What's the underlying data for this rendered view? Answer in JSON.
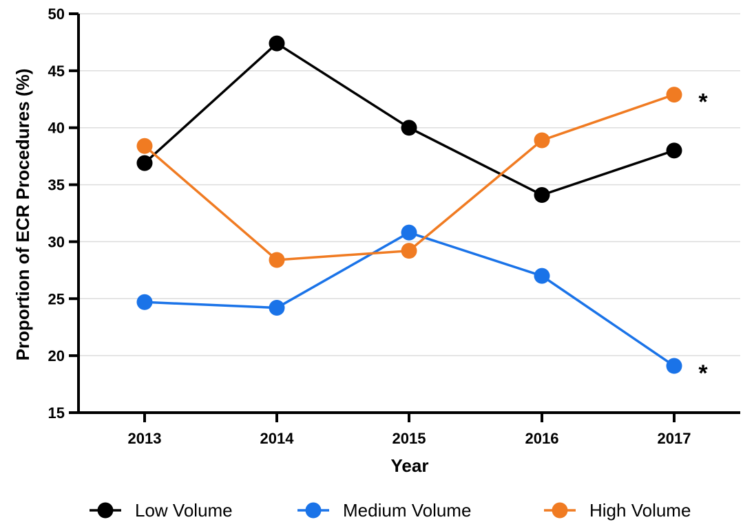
{
  "chart_data": {
    "type": "line",
    "title": "",
    "xlabel": "Year",
    "ylabel": "Proportion of ECR Procedures (%)",
    "categories": [
      "2013",
      "2014",
      "2015",
      "2016",
      "2017"
    ],
    "ylim": [
      15,
      50
    ],
    "yticks": [
      15,
      20,
      25,
      30,
      35,
      40,
      45,
      50
    ],
    "grid": "horizontal",
    "legend_position": "bottom",
    "series": [
      {
        "name": "Low Volume",
        "color": "#000000",
        "values": [
          36.9,
          47.4,
          40.0,
          34.1,
          38.0
        ]
      },
      {
        "name": "Medium Volume",
        "color": "#1a73e8",
        "values": [
          24.7,
          24.2,
          30.8,
          27.0,
          19.1
        ]
      },
      {
        "name": "High Volume",
        "color": "#f07b22",
        "values": [
          38.4,
          28.4,
          29.2,
          38.9,
          42.9
        ]
      }
    ],
    "annotations": [
      {
        "text": "*",
        "series": "High Volume",
        "category": "2017"
      },
      {
        "text": "*",
        "series": "Medium Volume",
        "category": "2017"
      }
    ]
  }
}
